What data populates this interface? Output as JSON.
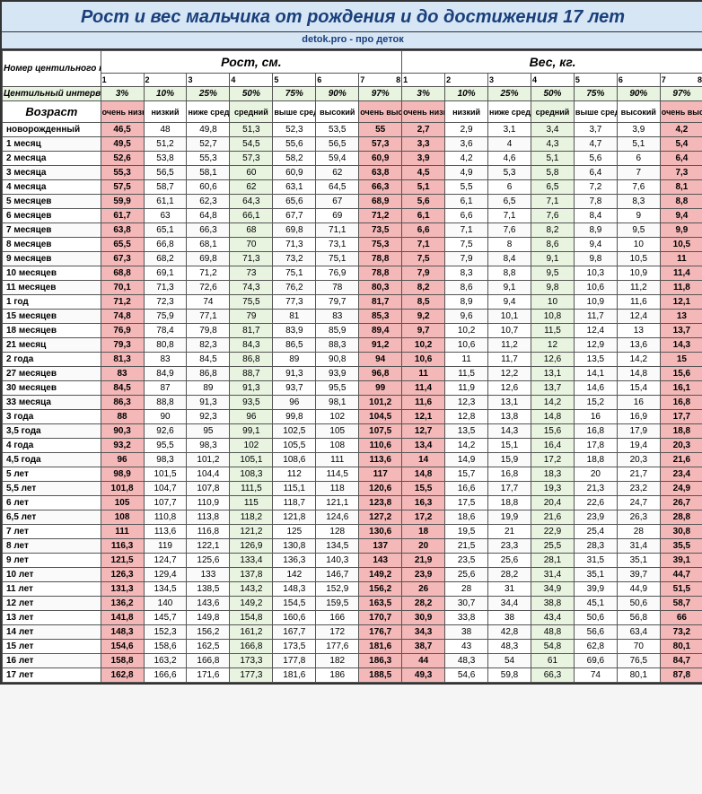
{
  "title": "Рост и вес мальчика от рождения и до достижения 17 лет",
  "subtitle": "detok.pro - про деток",
  "section_height": "Рост, см.",
  "section_weight": "Вес, кг.",
  "score_label": "Номер центильного коридора (баллы)",
  "percentile_label": "Центильный интервал",
  "age_label": "Возраст",
  "scores": [
    "1",
    "2",
    "3",
    "4",
    "5",
    "6",
    "7",
    "8"
  ],
  "percentiles": [
    "3%",
    "10%",
    "25%",
    "50%",
    "75%",
    "90%",
    "97%"
  ],
  "categories": [
    "очень низкий",
    "низкий",
    "ниже среднего",
    "средний",
    "выше среднего",
    "высокий",
    "очень высокий"
  ],
  "colors": {
    "title_bg": "#d6e6f5",
    "title_fg": "#1a3f7a",
    "extreme_bg": "#f4b8b8",
    "mid_bg": "#e8f3e0",
    "border": "#555"
  },
  "rows": [
    {
      "age": "новорожденный",
      "h": [
        "46,5",
        "48",
        "49,8",
        "51,3",
        "52,3",
        "53,5",
        "55"
      ],
      "w": [
        "2,7",
        "2,9",
        "3,1",
        "3,4",
        "3,7",
        "3,9",
        "4,2"
      ]
    },
    {
      "age": "1 месяц",
      "h": [
        "49,5",
        "51,2",
        "52,7",
        "54,5",
        "55,6",
        "56,5",
        "57,3"
      ],
      "w": [
        "3,3",
        "3,6",
        "4",
        "4,3",
        "4,7",
        "5,1",
        "5,4"
      ]
    },
    {
      "age": "2 месяца",
      "h": [
        "52,6",
        "53,8",
        "55,3",
        "57,3",
        "58,2",
        "59,4",
        "60,9"
      ],
      "w": [
        "3,9",
        "4,2",
        "4,6",
        "5,1",
        "5,6",
        "6",
        "6,4"
      ]
    },
    {
      "age": "3 месяца",
      "h": [
        "55,3",
        "56,5",
        "58,1",
        "60",
        "60,9",
        "62",
        "63,8"
      ],
      "w": [
        "4,5",
        "4,9",
        "5,3",
        "5,8",
        "6,4",
        "7",
        "7,3"
      ]
    },
    {
      "age": "4 месяца",
      "h": [
        "57,5",
        "58,7",
        "60,6",
        "62",
        "63,1",
        "64,5",
        "66,3"
      ],
      "w": [
        "5,1",
        "5,5",
        "6",
        "6,5",
        "7,2",
        "7,6",
        "8,1"
      ]
    },
    {
      "age": "5 месяцев",
      "h": [
        "59,9",
        "61,1",
        "62,3",
        "64,3",
        "65,6",
        "67",
        "68,9"
      ],
      "w": [
        "5,6",
        "6,1",
        "6,5",
        "7,1",
        "7,8",
        "8,3",
        "8,8"
      ]
    },
    {
      "age": "6 месяцев",
      "h": [
        "61,7",
        "63",
        "64,8",
        "66,1",
        "67,7",
        "69",
        "71,2"
      ],
      "w": [
        "6,1",
        "6,6",
        "7,1",
        "7,6",
        "8,4",
        "9",
        "9,4"
      ]
    },
    {
      "age": "7 месяцев",
      "h": [
        "63,8",
        "65,1",
        "66,3",
        "68",
        "69,8",
        "71,1",
        "73,5"
      ],
      "w": [
        "6,6",
        "7,1",
        "7,6",
        "8,2",
        "8,9",
        "9,5",
        "9,9"
      ]
    },
    {
      "age": "8 месяцев",
      "h": [
        "65,5",
        "66,8",
        "68,1",
        "70",
        "71,3",
        "73,1",
        "75,3"
      ],
      "w": [
        "7,1",
        "7,5",
        "8",
        "8,6",
        "9,4",
        "10",
        "10,5"
      ]
    },
    {
      "age": "9 месяцев",
      "h": [
        "67,3",
        "68,2",
        "69,8",
        "71,3",
        "73,2",
        "75,1",
        "78,8"
      ],
      "w": [
        "7,5",
        "7,9",
        "8,4",
        "9,1",
        "9,8",
        "10,5",
        "11"
      ]
    },
    {
      "age": "10 месяцев",
      "h": [
        "68,8",
        "69,1",
        "71,2",
        "73",
        "75,1",
        "76,9",
        "78,8"
      ],
      "w": [
        "7,9",
        "8,3",
        "8,8",
        "9,5",
        "10,3",
        "10,9",
        "11,4"
      ]
    },
    {
      "age": "11 месяцев",
      "h": [
        "70,1",
        "71,3",
        "72,6",
        "74,3",
        "76,2",
        "78",
        "80,3"
      ],
      "w": [
        "8,2",
        "8,6",
        "9,1",
        "9,8",
        "10,6",
        "11,2",
        "11,8"
      ]
    },
    {
      "age": "1 год",
      "h": [
        "71,2",
        "72,3",
        "74",
        "75,5",
        "77,3",
        "79,7",
        "81,7"
      ],
      "w": [
        "8,5",
        "8,9",
        "9,4",
        "10",
        "10,9",
        "11,6",
        "12,1"
      ]
    },
    {
      "age": "15 месяцев",
      "h": [
        "74,8",
        "75,9",
        "77,1",
        "79",
        "81",
        "83",
        "85,3"
      ],
      "w": [
        "9,2",
        "9,6",
        "10,1",
        "10,8",
        "11,7",
        "12,4",
        "13"
      ]
    },
    {
      "age": "18 месяцев",
      "h": [
        "76,9",
        "78,4",
        "79,8",
        "81,7",
        "83,9",
        "85,9",
        "89,4"
      ],
      "w": [
        "9,7",
        "10,2",
        "10,7",
        "11,5",
        "12,4",
        "13",
        "13,7"
      ]
    },
    {
      "age": "21 месяц",
      "h": [
        "79,3",
        "80,8",
        "82,3",
        "84,3",
        "86,5",
        "88,3",
        "91,2"
      ],
      "w": [
        "10,2",
        "10,6",
        "11,2",
        "12",
        "12,9",
        "13,6",
        "14,3"
      ]
    },
    {
      "age": "2 года",
      "h": [
        "81,3",
        "83",
        "84,5",
        "86,8",
        "89",
        "90,8",
        "94"
      ],
      "w": [
        "10,6",
        "11",
        "11,7",
        "12,6",
        "13,5",
        "14,2",
        "15"
      ]
    },
    {
      "age": "27 месяцев",
      "h": [
        "83",
        "84,9",
        "86,8",
        "88,7",
        "91,3",
        "93,9",
        "96,8"
      ],
      "w": [
        "11",
        "11,5",
        "12,2",
        "13,1",
        "14,1",
        "14,8",
        "15,6"
      ]
    },
    {
      "age": "30 месяцев",
      "h": [
        "84,5",
        "87",
        "89",
        "91,3",
        "93,7",
        "95,5",
        "99"
      ],
      "w": [
        "11,4",
        "11,9",
        "12,6",
        "13,7",
        "14,6",
        "15,4",
        "16,1"
      ]
    },
    {
      "age": "33 месяца",
      "h": [
        "86,3",
        "88,8",
        "91,3",
        "93,5",
        "96",
        "98,1",
        "101,2"
      ],
      "w": [
        "11,6",
        "12,3",
        "13,1",
        "14,2",
        "15,2",
        "16",
        "16,8"
      ]
    },
    {
      "age": "3 года",
      "h": [
        "88",
        "90",
        "92,3",
        "96",
        "99,8",
        "102",
        "104,5"
      ],
      "w": [
        "12,1",
        "12,8",
        "13,8",
        "14,8",
        "16",
        "16,9",
        "17,7"
      ]
    },
    {
      "age": "3,5 года",
      "h": [
        "90,3",
        "92,6",
        "95",
        "99,1",
        "102,5",
        "105",
        "107,5"
      ],
      "w": [
        "12,7",
        "13,5",
        "14,3",
        "15,6",
        "16,8",
        "17,9",
        "18,8"
      ]
    },
    {
      "age": "4 года",
      "h": [
        "93,2",
        "95,5",
        "98,3",
        "102",
        "105,5",
        "108",
        "110,6"
      ],
      "w": [
        "13,4",
        "14,2",
        "15,1",
        "16,4",
        "17,8",
        "19,4",
        "20,3"
      ]
    },
    {
      "age": "4,5 года",
      "h": [
        "96",
        "98,3",
        "101,2",
        "105,1",
        "108,6",
        "111",
        "113,6"
      ],
      "w": [
        "14",
        "14,9",
        "15,9",
        "17,2",
        "18,8",
        "20,3",
        "21,6"
      ]
    },
    {
      "age": "5 лет",
      "h": [
        "98,9",
        "101,5",
        "104,4",
        "108,3",
        "112",
        "114,5",
        "117"
      ],
      "w": [
        "14,8",
        "15,7",
        "16,8",
        "18,3",
        "20",
        "21,7",
        "23,4"
      ]
    },
    {
      "age": "5,5 лет",
      "h": [
        "101,8",
        "104,7",
        "107,8",
        "111,5",
        "115,1",
        "118",
        "120,6"
      ],
      "w": [
        "15,5",
        "16,6",
        "17,7",
        "19,3",
        "21,3",
        "23,2",
        "24,9"
      ]
    },
    {
      "age": "6 лет",
      "h": [
        "105",
        "107,7",
        "110,9",
        "115",
        "118,7",
        "121,1",
        "123,8"
      ],
      "w": [
        "16,3",
        "17,5",
        "18,8",
        "20,4",
        "22,6",
        "24,7",
        "26,7"
      ]
    },
    {
      "age": "6,5 лет",
      "h": [
        "108",
        "110,8",
        "113,8",
        "118,2",
        "121,8",
        "124,6",
        "127,2"
      ],
      "w": [
        "17,2",
        "18,6",
        "19,9",
        "21,6",
        "23,9",
        "26,3",
        "28,8"
      ]
    },
    {
      "age": "7 лет",
      "h": [
        "111",
        "113,6",
        "116,8",
        "121,2",
        "125",
        "128",
        "130,6"
      ],
      "w": [
        "18",
        "19,5",
        "21",
        "22,9",
        "25,4",
        "28",
        "30,8"
      ]
    },
    {
      "age": "8 лет",
      "h": [
        "116,3",
        "119",
        "122,1",
        "126,9",
        "130,8",
        "134,5",
        "137"
      ],
      "w": [
        "20",
        "21,5",
        "23,3",
        "25,5",
        "28,3",
        "31,4",
        "35,5"
      ]
    },
    {
      "age": "9 лет",
      "h": [
        "121,5",
        "124,7",
        "125,6",
        "133,4",
        "136,3",
        "140,3",
        "143"
      ],
      "w": [
        "21,9",
        "23,5",
        "25,6",
        "28,1",
        "31,5",
        "35,1",
        "39,1"
      ]
    },
    {
      "age": "10 лет",
      "h": [
        "126,3",
        "129,4",
        "133",
        "137,8",
        "142",
        "146,7",
        "149,2"
      ],
      "w": [
        "23,9",
        "25,6",
        "28,2",
        "31,4",
        "35,1",
        "39,7",
        "44,7"
      ]
    },
    {
      "age": "11 лет",
      "h": [
        "131,3",
        "134,5",
        "138,5",
        "143,2",
        "148,3",
        "152,9",
        "156,2"
      ],
      "w": [
        "26",
        "28",
        "31",
        "34,9",
        "39,9",
        "44,9",
        "51,5"
      ]
    },
    {
      "age": "12 лет",
      "h": [
        "136,2",
        "140",
        "143,6",
        "149,2",
        "154,5",
        "159,5",
        "163,5"
      ],
      "w": [
        "28,2",
        "30,7",
        "34,4",
        "38,8",
        "45,1",
        "50,6",
        "58,7"
      ]
    },
    {
      "age": "13 лет",
      "h": [
        "141,8",
        "145,7",
        "149,8",
        "154,8",
        "160,6",
        "166",
        "170,7"
      ],
      "w": [
        "30,9",
        "33,8",
        "38",
        "43,4",
        "50,6",
        "56,8",
        "66"
      ]
    },
    {
      "age": "14 лет",
      "h": [
        "148,3",
        "152,3",
        "156,2",
        "161,2",
        "167,7",
        "172",
        "176,7"
      ],
      "w": [
        "34,3",
        "38",
        "42,8",
        "48,8",
        "56,6",
        "63,4",
        "73,2"
      ]
    },
    {
      "age": "15 лет",
      "h": [
        "154,6",
        "158,6",
        "162,5",
        "166,8",
        "173,5",
        "177,6",
        "181,6"
      ],
      "w": [
        "38,7",
        "43",
        "48,3",
        "54,8",
        "62,8",
        "70",
        "80,1"
      ]
    },
    {
      "age": "16 лет",
      "h": [
        "158,8",
        "163,2",
        "166,8",
        "173,3",
        "177,8",
        "182",
        "186,3"
      ],
      "w": [
        "44",
        "48,3",
        "54",
        "61",
        "69,6",
        "76,5",
        "84,7"
      ]
    },
    {
      "age": "17 лет",
      "h": [
        "162,8",
        "166,6",
        "171,6",
        "177,3",
        "181,6",
        "186",
        "188,5"
      ],
      "w": [
        "49,3",
        "54,6",
        "59,8",
        "66,3",
        "74",
        "80,1",
        "87,8"
      ]
    }
  ]
}
